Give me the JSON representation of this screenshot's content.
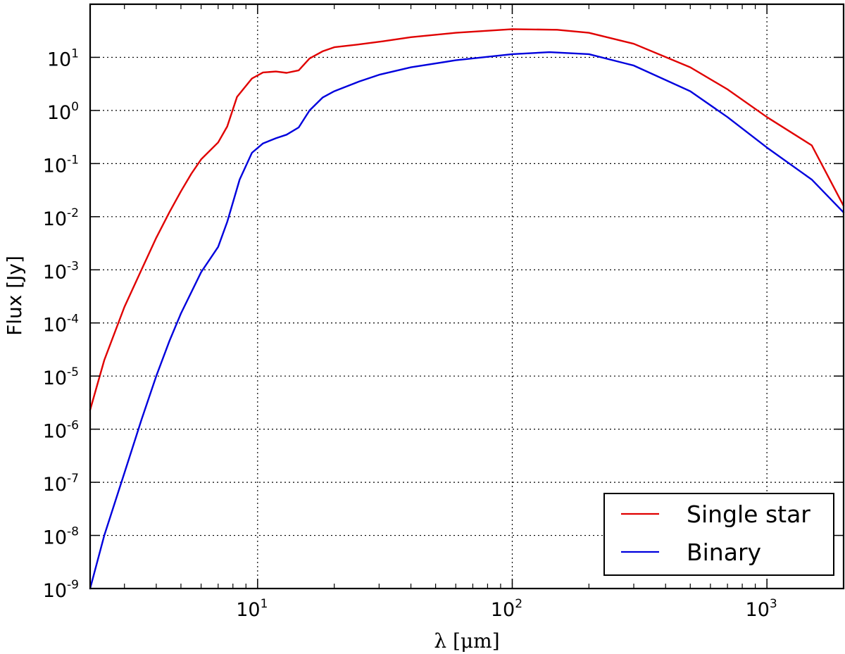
{
  "chart_data": {
    "type": "line",
    "title": "",
    "xlabel": "λ [μm]",
    "ylabel": "Flux [Jy]",
    "xscale": "log",
    "yscale": "log",
    "xlim": [
      2.2,
      2000
    ],
    "ylim": [
      1e-09,
      100.0
    ],
    "grid": true,
    "legend_position": "bottom-right",
    "x_ticks": [
      {
        "value": 10,
        "base": "10",
        "exp": "1"
      },
      {
        "value": 100,
        "base": "10",
        "exp": "2"
      },
      {
        "value": 1000,
        "base": "10",
        "exp": "3"
      }
    ],
    "y_ticks": [
      {
        "value": 1e-09,
        "base": "10",
        "exp": "-9"
      },
      {
        "value": 1e-08,
        "base": "10",
        "exp": "-8"
      },
      {
        "value": 1e-07,
        "base": "10",
        "exp": "-7"
      },
      {
        "value": 1e-06,
        "base": "10",
        "exp": "-6"
      },
      {
        "value": 1e-05,
        "base": "10",
        "exp": "-5"
      },
      {
        "value": 0.0001,
        "base": "10",
        "exp": "-4"
      },
      {
        "value": 0.001,
        "base": "10",
        "exp": "-3"
      },
      {
        "value": 0.01,
        "base": "10",
        "exp": "-2"
      },
      {
        "value": 0.1,
        "base": "10",
        "exp": "-1"
      },
      {
        "value": 1,
        "base": "10",
        "exp": "0"
      },
      {
        "value": 10,
        "base": "10",
        "exp": "1"
      }
    ],
    "series": [
      {
        "name": "Single star",
        "color": "#e00000",
        "x": [
          2.2,
          2.5,
          3,
          3.5,
          4,
          4.5,
          5,
          5.5,
          6,
          7,
          7.6,
          8.3,
          9.5,
          10.5,
          11.8,
          13,
          14.5,
          16,
          18,
          20,
          25,
          31,
          40,
          60,
          100,
          150,
          200,
          300,
          500,
          700,
          1000,
          1500,
          2000
        ],
        "y": [
          2.3e-06,
          2e-05,
          0.0002,
          0.001,
          0.004,
          0.012,
          0.03,
          0.065,
          0.12,
          0.25,
          0.5,
          1.8,
          4,
          5.2,
          5.4,
          5.1,
          5.7,
          9.5,
          13,
          15.5,
          17.5,
          20,
          24,
          29,
          34,
          33,
          29,
          18,
          6.5,
          2.5,
          0.75,
          0.22,
          0.016
        ]
      },
      {
        "name": "Binary",
        "color": "#0000dd",
        "x": [
          2.2,
          2.5,
          3,
          3.5,
          4,
          4.5,
          5,
          6,
          7,
          7.6,
          8.5,
          9.5,
          10.5,
          11.8,
          13,
          14.5,
          16,
          18,
          20,
          25,
          30,
          40,
          60,
          100,
          140,
          200,
          300,
          500,
          700,
          1000,
          1500,
          2000
        ],
        "y": [
          1e-09,
          1e-08,
          1.5e-07,
          1.5e-06,
          1e-05,
          4.5e-05,
          0.00015,
          0.0009,
          0.0027,
          0.008,
          0.05,
          0.16,
          0.24,
          0.3,
          0.35,
          0.48,
          1,
          1.75,
          2.3,
          3.5,
          4.7,
          6.5,
          8.8,
          11.5,
          12.5,
          11.5,
          7,
          2.3,
          0.75,
          0.2,
          0.05,
          0.012
        ]
      }
    ]
  }
}
